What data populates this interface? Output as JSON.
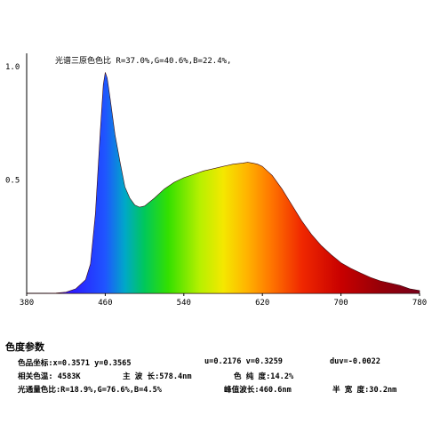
{
  "chart_data": {
    "type": "area",
    "title": "光谱三原色色比 R=37.0%,G=40.6%,B=22.4%,",
    "xlabel": "",
    "ylabel": "",
    "xlim": [
      380,
      780
    ],
    "ylim": [
      0,
      1.0
    ],
    "x_ticks": [
      "380",
      "460",
      "540",
      "620",
      "700",
      "780"
    ],
    "y_ticks": [
      "1.0",
      "0.5"
    ],
    "fill": "spectral-gradient",
    "x": [
      380,
      400,
      410,
      420,
      430,
      440,
      445,
      450,
      455,
      458,
      460,
      462,
      465,
      470,
      475,
      480,
      485,
      490,
      495,
      500,
      510,
      520,
      530,
      540,
      550,
      560,
      570,
      580,
      590,
      600,
      605,
      610,
      615,
      620,
      630,
      640,
      650,
      660,
      670,
      680,
      690,
      700,
      710,
      720,
      730,
      740,
      750,
      760,
      770,
      780
    ],
    "y": [
      0,
      0,
      0.001,
      0.005,
      0.02,
      0.06,
      0.13,
      0.35,
      0.72,
      0.92,
      0.975,
      0.95,
      0.86,
      0.7,
      0.58,
      0.47,
      0.42,
      0.39,
      0.38,
      0.385,
      0.42,
      0.46,
      0.49,
      0.51,
      0.525,
      0.54,
      0.55,
      0.56,
      0.57,
      0.575,
      0.578,
      0.575,
      0.57,
      0.56,
      0.52,
      0.46,
      0.39,
      0.32,
      0.26,
      0.21,
      0.17,
      0.135,
      0.11,
      0.09,
      0.07,
      0.055,
      0.045,
      0.035,
      0.02,
      0.012
    ]
  },
  "params": {
    "heading": "色度参数",
    "row1": {
      "chromaticity": "色品坐标:x=0.3571  y=0.3565",
      "uv": "u=0.2176  v=0.3259",
      "duv": "duv=-0.0022"
    },
    "row2": {
      "cct": "相关色温: 4583K",
      "dominant_wavelength": "主 波 长:578.4nm",
      "purity": "色 纯 度:14.2%"
    },
    "row3": {
      "luminous_ratio": "光通量色比:R=18.9%,G=76.6%,B=4.5%",
      "peak_wavelength": "峰值波长:460.6nm",
      "half_width": "半 宽 度:30.2nm"
    }
  }
}
